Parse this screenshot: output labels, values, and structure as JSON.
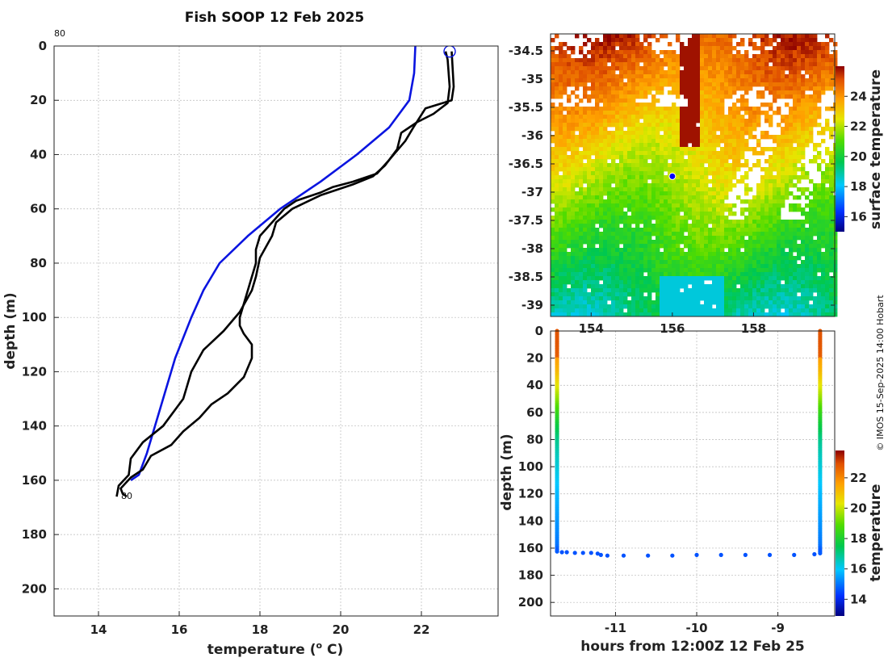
{
  "title": "Fish SOOP 12 Feb 2025",
  "credit": "© IMOS 15-Sep-2025 14:00 Hobart",
  "colors": {
    "climatology": "#0a14e0",
    "profile": "#000000",
    "marker": "#0a14e0"
  },
  "chart_data": [
    {
      "id": "profile",
      "type": "line",
      "title": "Fish SOOP 12 Feb 2025",
      "xlabel": "temperature (o C)",
      "xlabel_main": "temperature (",
      "xlabel_sup": "o",
      "xlabel_end": " C)",
      "ylabel": "depth (m)",
      "xlim": [
        12.9,
        23.9
      ],
      "ylim": [
        210,
        0
      ],
      "xticks": [
        14,
        16,
        18,
        20,
        22
      ],
      "yticks": [
        0,
        20,
        40,
        60,
        80,
        100,
        120,
        140,
        160,
        180,
        200
      ],
      "annotations": [
        {
          "text": "80",
          "x": 12.9,
          "y": -4
        },
        {
          "text": "80",
          "x": 14.8,
          "y": 167
        }
      ],
      "series": [
        {
          "name": "climatology",
          "points": [
            [
              21.85,
              0
            ],
            [
              21.82,
              10
            ],
            [
              21.7,
              20
            ],
            [
              21.2,
              30
            ],
            [
              20.4,
              40
            ],
            [
              19.5,
              50
            ],
            [
              18.5,
              60
            ],
            [
              17.7,
              70
            ],
            [
              17.0,
              80
            ],
            [
              16.6,
              90
            ],
            [
              16.3,
              100
            ],
            [
              15.9,
              115
            ],
            [
              15.5,
              135
            ],
            [
              15.2,
              150
            ],
            [
              15.0,
              158
            ],
            [
              14.8,
              160
            ]
          ]
        },
        {
          "name": "profile-down",
          "points": [
            [
              22.75,
              2
            ],
            [
              22.8,
              15
            ],
            [
              22.75,
              20
            ],
            [
              22.1,
              23
            ],
            [
              21.8,
              30
            ],
            [
              21.6,
              35
            ],
            [
              21.2,
              42
            ],
            [
              20.9,
              47
            ],
            [
              20.3,
              50
            ],
            [
              19.8,
              52
            ],
            [
              19.5,
              54
            ],
            [
              18.9,
              57
            ],
            [
              18.6,
              60
            ],
            [
              18.3,
              65
            ],
            [
              18.0,
              70
            ],
            [
              17.9,
              75
            ],
            [
              17.9,
              80
            ],
            [
              17.8,
              85
            ],
            [
              17.7,
              90
            ],
            [
              17.6,
              95
            ],
            [
              17.5,
              100
            ],
            [
              17.5,
              103
            ],
            [
              17.6,
              106
            ],
            [
              17.8,
              110
            ],
            [
              17.8,
              115
            ],
            [
              17.6,
              122
            ],
            [
              17.2,
              128
            ],
            [
              16.8,
              132
            ],
            [
              16.5,
              137
            ],
            [
              16.1,
              142
            ],
            [
              15.8,
              147
            ],
            [
              15.3,
              151
            ],
            [
              15.1,
              156
            ],
            [
              14.8,
              159
            ],
            [
              14.55,
              163
            ],
            [
              14.6,
              165
            ],
            [
              14.7,
              166
            ]
          ]
        },
        {
          "name": "profile-up",
          "points": [
            [
              14.45,
              166
            ],
            [
              14.5,
              162
            ],
            [
              14.75,
              158
            ],
            [
              14.8,
              152
            ],
            [
              15.1,
              146
            ],
            [
              15.6,
              140
            ],
            [
              15.8,
              136
            ],
            [
              16.1,
              130
            ],
            [
              16.2,
              125
            ],
            [
              16.3,
              120
            ],
            [
              16.6,
              112
            ],
            [
              17.1,
              105
            ],
            [
              17.5,
              98
            ],
            [
              17.8,
              90
            ],
            [
              17.9,
              85
            ],
            [
              18.0,
              78
            ],
            [
              18.3,
              70
            ],
            [
              18.4,
              65
            ],
            [
              18.8,
              60
            ],
            [
              19.5,
              55
            ],
            [
              20.3,
              51
            ],
            [
              20.8,
              48
            ],
            [
              21.1,
              44
            ],
            [
              21.4,
              38
            ],
            [
              21.5,
              32
            ],
            [
              21.9,
              28
            ],
            [
              22.3,
              25
            ],
            [
              22.65,
              21
            ],
            [
              22.7,
              15
            ],
            [
              22.65,
              5
            ],
            [
              22.6,
              2
            ]
          ]
        }
      ],
      "marker": {
        "x": 22.7,
        "y": 2
      }
    },
    {
      "id": "sst-map",
      "type": "heatmap",
      "colorbar_label": "surface temperature",
      "color_range": [
        15,
        26
      ],
      "colorbar_ticks": [
        16,
        18,
        20,
        22,
        24
      ],
      "yticks": [
        -34.5,
        -35,
        -35.5,
        -36,
        -36.5,
        -37,
        -37.5,
        -38,
        -38.5,
        -39
      ],
      "ytick_labels": [
        "-34.5",
        "-35",
        "-35.5",
        "-36",
        "-36.5",
        "-37",
        "-37.5",
        "-38",
        "-38.5",
        "-39"
      ],
      "xticks": [
        154,
        156,
        158
      ],
      "xlim": [
        153.0,
        160.0
      ],
      "ylim": [
        -39.2,
        -34.2
      ],
      "vessel_position": {
        "lon": 156.0,
        "lat": -36.72
      }
    },
    {
      "id": "section",
      "type": "scatter",
      "xlabel": "hours from 12:00Z 12 Feb 25",
      "ylabel": "depth (m)",
      "colorbar_label": "temperature",
      "color_range": [
        12.9,
        23.8
      ],
      "colorbar_ticks": [
        14,
        16,
        18,
        20,
        22
      ],
      "xlim": [
        -11.8,
        -8.3
      ],
      "ylim": [
        210,
        0
      ],
      "xticks": [
        -11,
        -10,
        -9
      ],
      "yticks": [
        0,
        20,
        40,
        60,
        80,
        100,
        120,
        140,
        160,
        180,
        200
      ],
      "down_cast": {
        "hour": -11.72,
        "depth_max": 163
      },
      "up_cast": {
        "hour": -8.48,
        "depth_max": 164
      },
      "bottom_track": [
        [
          -11.66,
          163
        ],
        [
          -11.6,
          163
        ],
        [
          -11.5,
          163.5
        ],
        [
          -11.4,
          163.5
        ],
        [
          -11.3,
          163.5
        ],
        [
          -11.22,
          164
        ],
        [
          -11.18,
          165
        ],
        [
          -11.1,
          165.5
        ],
        [
          -10.9,
          165.5
        ],
        [
          -10.6,
          165.5
        ],
        [
          -10.3,
          165.5
        ],
        [
          -10.0,
          165
        ],
        [
          -9.7,
          165
        ],
        [
          -9.4,
          165
        ],
        [
          -9.1,
          165
        ],
        [
          -8.8,
          165
        ],
        [
          -8.55,
          164.5
        ]
      ]
    }
  ]
}
